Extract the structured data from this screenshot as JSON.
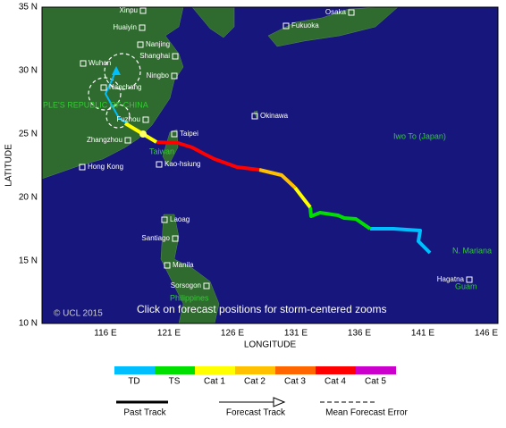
{
  "axes": {
    "y_title": "LATITUDE",
    "x_title": "LONGITUDE",
    "lat_labels": [
      "35 N",
      "30 N",
      "25 N",
      "20 N",
      "15 N",
      "10 N"
    ],
    "lon_labels": [
      "116 E",
      "121 E",
      "126 E",
      "131 E",
      "136 E",
      "141 E",
      "146 E"
    ]
  },
  "places": [
    "Xinpu",
    "Huaiyin",
    "Nanjing",
    "Shanghai",
    "Wuhan",
    "Ningbo",
    "Nanchang",
    "Fuzhou",
    "Taipei",
    "Zhangzhou",
    "Kao-hsiung",
    "Hong Kong",
    "Okinawa",
    "Osaka",
    "Fukuoka",
    "Hagatna",
    "Laoag",
    "Santiago",
    "Manila",
    "Sorsogon"
  ],
  "regions": [
    "PLE'S REPUBLIC OF CHINA",
    "Taiwan",
    "Iwo To (Japan)",
    "N. Mariana",
    "Guam",
    "Philippines"
  ],
  "copyright": "© UCL 2015",
  "notice": "Click on forecast positions for storm-centered zooms",
  "legend": {
    "categories": [
      "TD",
      "TS",
      "Cat 1",
      "Cat 2",
      "Cat 3",
      "Cat 4",
      "Cat 5"
    ],
    "lines": [
      "Past Track",
      "Forecast Track",
      "Mean Forecast Error"
    ]
  }
}
